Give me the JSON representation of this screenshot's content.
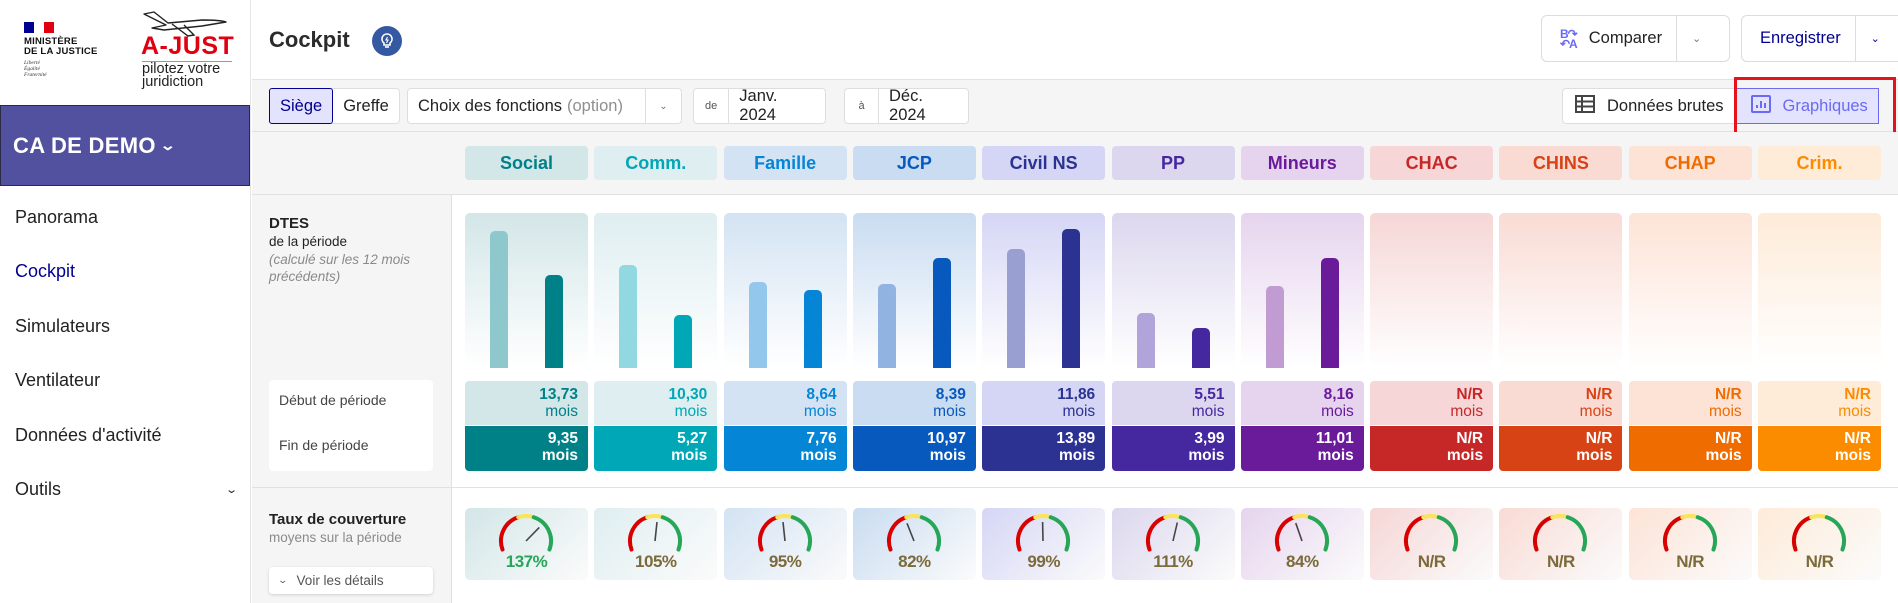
{
  "logo": {
    "ministere_line1": "MINISTÈRE",
    "ministere_line2": "DE LA JUSTICE",
    "devise": [
      "Liberté",
      "Égalité",
      "Fraternité"
    ],
    "app_name": "A-JUST",
    "tagline_line1": "pilotez votre",
    "tagline_line2": "juridiction"
  },
  "court": {
    "name": "CA DE DEMO"
  },
  "sidebar": {
    "items": [
      {
        "label": "Panorama",
        "active": false
      },
      {
        "label": "Cockpit",
        "active": true
      },
      {
        "label": "Simulateurs",
        "active": false
      },
      {
        "label": "Ventilateur",
        "active": false
      },
      {
        "label": "Données d'activité",
        "active": false
      },
      {
        "label": "Outils",
        "active": false,
        "has_submenu": true
      }
    ]
  },
  "header": {
    "title": "Cockpit",
    "compare_label": "Comparer",
    "save_label": "Enregistrer"
  },
  "toolbar": {
    "segments": [
      {
        "label": "Siège",
        "selected": true
      },
      {
        "label": "Greffe",
        "selected": false
      }
    ],
    "fonctions_label": "Choix des fonctions",
    "fonctions_hint": "(option)",
    "date_from_prefix": "de",
    "date_from": "Janv. 2024",
    "date_to_prefix": "à",
    "date_to": "Déc. 2024",
    "view_raw_label": "Données brutes",
    "view_charts_label": "Graphiques",
    "view_selected": "Graphiques"
  },
  "dtes": {
    "title": "DTES",
    "subtitle": "de la période",
    "note": "(calculé sur les 12 mois précédents)",
    "start_label": "Début de période",
    "end_label": "Fin de période",
    "unit": "mois"
  },
  "taux": {
    "title": "Taux de couverture",
    "subtitle": "moyens sur la période",
    "details_label": "Voir les détails"
  },
  "chart_data": {
    "type": "bar",
    "title": "DTES de la période",
    "unit": "mois",
    "categories": [
      "Social",
      "Comm.",
      "Famille",
      "JCP",
      "Civil NS",
      "PP",
      "Mineurs",
      "CHAC",
      "CHINS",
      "CHAP",
      "Crim."
    ],
    "series": [
      {
        "name": "Début de période",
        "values": [
          13.73,
          10.3,
          8.64,
          8.39,
          11.86,
          5.51,
          8.16,
          null,
          null,
          null,
          null
        ],
        "labels": [
          "13,73",
          "10,30",
          "8,64",
          "8,39",
          "11,86",
          "5,51",
          "8,16",
          "N/R",
          "N/R",
          "N/R",
          "N/R"
        ]
      },
      {
        "name": "Fin de période",
        "values": [
          9.35,
          5.27,
          7.76,
          10.97,
          13.89,
          3.99,
          11.01,
          null,
          null,
          null,
          null
        ],
        "labels": [
          "9,35",
          "5,27",
          "7,76",
          "10,97",
          "13,89",
          "3,99",
          "11,01",
          "N/R",
          "N/R",
          "N/R",
          "N/R"
        ]
      }
    ],
    "ylim": [
      0,
      15.5
    ],
    "coverage": {
      "values": [
        137,
        105,
        95,
        82,
        99,
        111,
        84,
        null,
        null,
        null,
        null
      ],
      "labels": [
        "137%",
        "105%",
        "95%",
        "82%",
        "99%",
        "111%",
        "84%",
        "N/R",
        "N/R",
        "N/R",
        "N/R"
      ]
    }
  },
  "colors": {
    "primary": "#000091",
    "court_banner": "#5151a0",
    "highlight": "#e5141a",
    "categories": [
      {
        "bg": "#d3e6e8",
        "text": "#008087",
        "dark": "#008087",
        "light": "#8ec7cc",
        "grad": "#d3e6e8"
      },
      {
        "bg": "#dfeef1",
        "text": "#00a7b6",
        "dark": "#00a7b6",
        "light": "#91d8e0",
        "grad": "#dfeef1"
      },
      {
        "bg": "#d3e3f3",
        "text": "#0585d6",
        "dark": "#0585d6",
        "light": "#93c7ec",
        "grad": "#d3e3f3"
      },
      {
        "bg": "#c9dcf1",
        "text": "#0759bd",
        "dark": "#0759bd",
        "light": "#91b3e1",
        "grad": "#c9dcf1"
      },
      {
        "bg": "#d5d6f5",
        "text": "#2b3292",
        "dark": "#2b3292",
        "light": "#9a9fd1",
        "grad": "#d5d6f5"
      },
      {
        "bg": "#dcd7ee",
        "text": "#4527a0",
        "dark": "#4527a0",
        "light": "#b0a4da",
        "grad": "#dcd7ee"
      },
      {
        "bg": "#e6d4ee",
        "text": "#6a1b9a",
        "dark": "#6a1b9a",
        "light": "#c09cd3",
        "grad": "#e6d4ee"
      },
      {
        "bg": "#f6d6d6",
        "text": "#c62828",
        "dark": "#c62828",
        "light": "#e8a0a0",
        "grad": "#f6d6d6"
      },
      {
        "bg": "#f9dbd4",
        "text": "#d84315",
        "dark": "#d84315",
        "light": "#eeaa90",
        "grad": "#f9dbd4"
      },
      {
        "bg": "#fde3d6",
        "text": "#ef6c00",
        "dark": "#ef6c00",
        "light": "#f5b37a",
        "grad": "#fde3d6"
      },
      {
        "bg": "#feebd8",
        "text": "#fb8c00",
        "dark": "#fb8c00",
        "light": "#fbc27d",
        "grad": "#feebd8"
      }
    ],
    "gauge_ok": "#27a658",
    "gauge_neutral": "#7b6a3a"
  }
}
